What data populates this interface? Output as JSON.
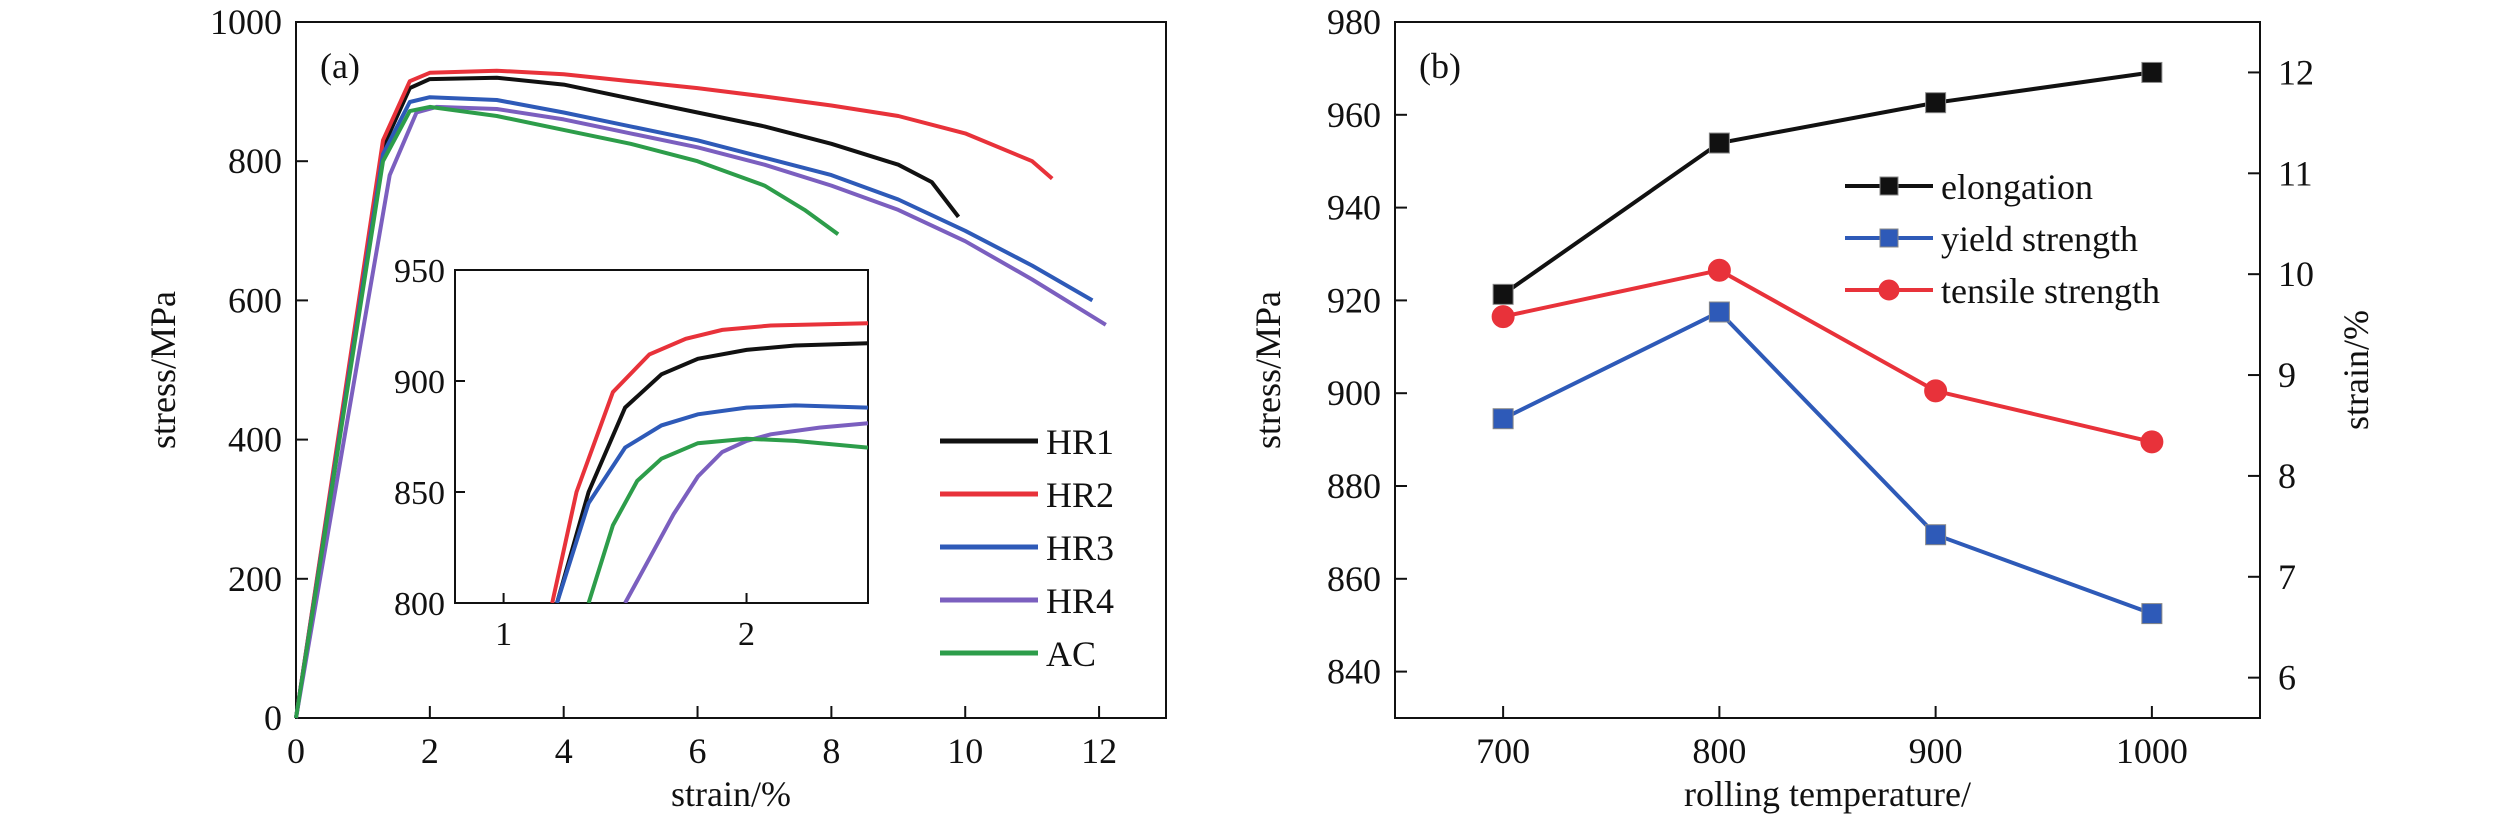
{
  "chart_data": [
    {
      "panel_label": "(a)",
      "type": "line",
      "xlabel": "strain/%",
      "ylabel": "stress/MPa",
      "xlim": [
        0,
        13
      ],
      "ylim": [
        0,
        1000
      ],
      "xticks": [
        0,
        2,
        4,
        6,
        8,
        10,
        12
      ],
      "yticks": [
        0,
        200,
        400,
        600,
        800,
        1000
      ],
      "legend_position": "bottom-right",
      "series": [
        {
          "name": "HR1",
          "color": "#111111",
          "x": [
            0,
            1.3,
            1.7,
            2.0,
            3.0,
            4.0,
            5.0,
            6.0,
            7.0,
            8.0,
            9.0,
            9.5,
            9.9
          ],
          "y": [
            0,
            820,
            905,
            918,
            920,
            910,
            890,
            870,
            850,
            825,
            795,
            770,
            720
          ]
        },
        {
          "name": "HR2",
          "color": "#e8323a",
          "x": [
            0,
            1.3,
            1.7,
            2.0,
            3.0,
            4.0,
            5.0,
            6.0,
            7.0,
            8.0,
            9.0,
            10.0,
            11.0,
            11.3
          ],
          "y": [
            0,
            830,
            915,
            927,
            930,
            925,
            915,
            905,
            893,
            880,
            865,
            840,
            800,
            775
          ]
        },
        {
          "name": "HR3",
          "color": "#2e5ab8",
          "x": [
            0,
            1.3,
            1.7,
            2.0,
            3.0,
            4.0,
            5.0,
            6.0,
            7.0,
            8.0,
            9.0,
            10.0,
            11.0,
            11.9
          ],
          "y": [
            0,
            810,
            885,
            892,
            888,
            870,
            850,
            830,
            805,
            780,
            745,
            700,
            650,
            600
          ]
        },
        {
          "name": "HR4",
          "color": "#7b5fbf",
          "x": [
            0,
            1.4,
            1.8,
            2.1,
            3.0,
            4.0,
            5.0,
            6.0,
            7.0,
            8.0,
            9.0,
            10.0,
            11.0,
            12.1
          ],
          "y": [
            0,
            780,
            870,
            878,
            875,
            860,
            840,
            820,
            795,
            765,
            730,
            685,
            630,
            565
          ]
        },
        {
          "name": "AC",
          "color": "#2d9d4a",
          "x": [
            0,
            1.3,
            1.7,
            2.0,
            3.0,
            4.0,
            5.0,
            6.0,
            7.0,
            7.6,
            8.1
          ],
          "y": [
            0,
            800,
            872,
            878,
            865,
            845,
            825,
            800,
            765,
            730,
            695
          ]
        }
      ],
      "inset": {
        "xlim": [
          0.8,
          2.5
        ],
        "ylim": [
          800,
          950
        ],
        "xticks": [
          1,
          2
        ],
        "yticks": [
          800,
          850,
          900,
          950
        ],
        "series": [
          {
            "name": "HR1",
            "color": "#111111",
            "x": [
              1.22,
              1.35,
              1.5,
              1.65,
              1.8,
              2.0,
              2.2,
              2.5
            ],
            "y": [
              800,
              850,
              888,
              903,
              910,
              914,
              916,
              917
            ]
          },
          {
            "name": "HR2",
            "color": "#e8323a",
            "x": [
              1.2,
              1.3,
              1.45,
              1.6,
              1.75,
              1.9,
              2.1,
              2.5
            ],
            "y": [
              800,
              850,
              895,
              912,
              919,
              923,
              925,
              926
            ]
          },
          {
            "name": "HR3",
            "color": "#2e5ab8",
            "x": [
              1.22,
              1.35,
              1.5,
              1.65,
              1.8,
              2.0,
              2.2,
              2.5
            ],
            "y": [
              800,
              845,
              870,
              880,
              885,
              888,
              889,
              888
            ]
          },
          {
            "name": "HR4",
            "color": "#7b5fbf",
            "x": [
              1.5,
              1.6,
              1.7,
              1.8,
              1.9,
              2.0,
              2.1,
              2.3,
              2.5
            ],
            "y": [
              800,
              820,
              840,
              857,
              868,
              873,
              876,
              879,
              881
            ]
          },
          {
            "name": "AC",
            "color": "#2d9d4a",
            "x": [
              1.35,
              1.45,
              1.55,
              1.65,
              1.8,
              2.0,
              2.2,
              2.5
            ],
            "y": [
              800,
              835,
              855,
              865,
              872,
              874,
              873,
              870
            ]
          }
        ]
      }
    },
    {
      "panel_label": "(b)",
      "type": "line",
      "xlabel": "rolling temperature/",
      "ylabel": "stress/MPa",
      "y2label": "strain/%",
      "categories": [
        700,
        800,
        900,
        1000
      ],
      "xlim": [
        650,
        1050
      ],
      "ylim": [
        830,
        980
      ],
      "y2lim": [
        5.6,
        12.5
      ],
      "yticks": [
        840,
        860,
        880,
        900,
        920,
        940,
        960,
        980
      ],
      "y2ticks": [
        6,
        7,
        8,
        9,
        10,
        11,
        12
      ],
      "legend_position": "top-right",
      "series": [
        {
          "name": "elongation",
          "color": "#111111",
          "marker": "square",
          "axis": "right",
          "values": [
            9.8,
            11.3,
            11.7,
            12.0
          ]
        },
        {
          "name": "yield strength",
          "color": "#2e5ab8",
          "marker": "square",
          "axis": "left",
          "values": [
            894.5,
            917.5,
            869.5,
            852.5
          ]
        },
        {
          "name": "tensile strength",
          "color": "#e8323a",
          "marker": "circle",
          "axis": "left",
          "values": [
            916.5,
            926.5,
            900.5,
            889.5
          ]
        }
      ]
    }
  ]
}
